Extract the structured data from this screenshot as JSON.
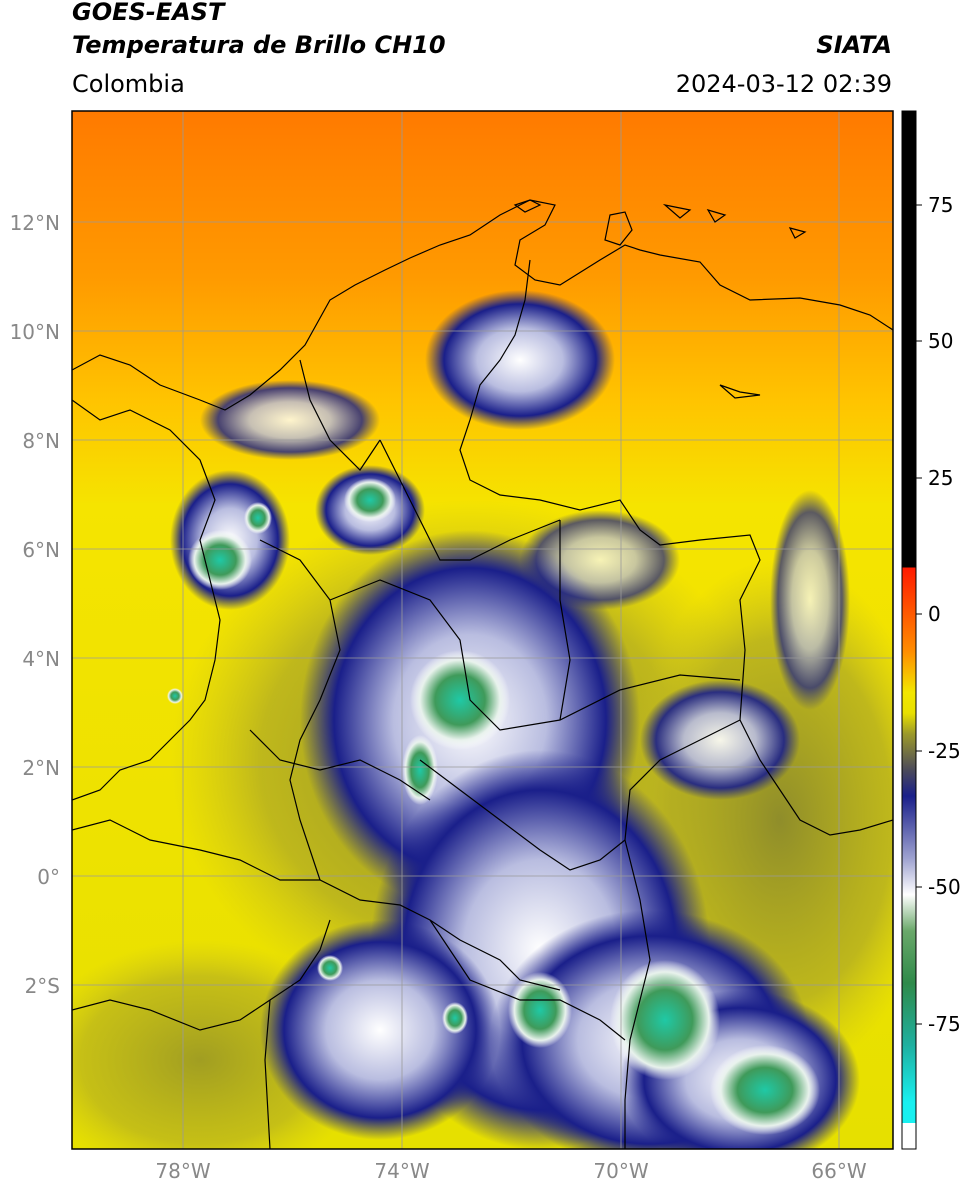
{
  "header": {
    "satellite": "GOES-EAST",
    "product": "Temperatura de Brillo CH10",
    "region": "Colombia",
    "institution": "SIATA",
    "datetime": "2024-03-12 02:39"
  },
  "map": {
    "lat_labels": [
      "12°N",
      "10°N",
      "8°N",
      "6°N",
      "4°N",
      "2°N",
      "0°",
      "2°S"
    ],
    "lon_labels": [
      "78°W",
      "74°W",
      "70°W",
      "66°W"
    ],
    "colors": {
      "warm_orange": "#ff8c00",
      "yellow": "#f2e600",
      "olive": "#9c9a2a",
      "navy": "#1a1f8a",
      "white": "#ffffff",
      "green": "#3f9a5a",
      "teal": "#1fc9a6",
      "grid": "#9a9a9a",
      "border": "#000000"
    }
  },
  "colorbar": {
    "tick_labels": [
      "75",
      "50",
      "25",
      "0",
      "-25",
      "-50",
      "-75"
    ],
    "colors": [
      "#000000",
      "#ff1a00",
      "#ff8c00",
      "#f2e600",
      "#9c9a2a",
      "#1a1f8a",
      "#ffffff",
      "#2f8a4a",
      "#1fc9a6",
      "#19f0f0",
      "#ffffff"
    ]
  }
}
